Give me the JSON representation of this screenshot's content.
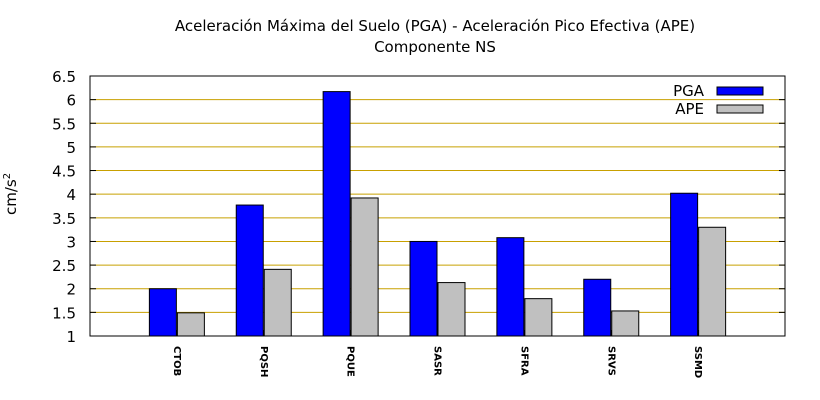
{
  "chart_data": {
    "type": "bar",
    "title": "Aceleración Máxima del Suelo (PGA) -  Aceleración Pico Efectiva (APE)",
    "subtitle": "Componente NS",
    "ylabel_base": "cm/s",
    "ylabel_exp": "2",
    "xlabel": "",
    "ylim": [
      1,
      6.5
    ],
    "yticks": [
      "1",
      "1.5",
      "2",
      "2.5",
      "3",
      "3.5",
      "4",
      "4.5",
      "5",
      "5.5",
      "6",
      "6.5"
    ],
    "grid": true,
    "legend_position": "top-right",
    "categories": [
      "CTOB",
      "PQSH",
      "PQUE",
      "SASR",
      "SFRA",
      "SRVS",
      "SSMD"
    ],
    "series": [
      {
        "name": "PGA",
        "color": "#0000ff",
        "values": [
          2.0,
          3.77,
          6.17,
          3.0,
          3.08,
          2.2,
          4.02
        ]
      },
      {
        "name": "APE",
        "color": "#c0c0c0",
        "values": [
          1.49,
          2.41,
          3.92,
          2.13,
          1.79,
          1.53,
          3.3
        ]
      }
    ],
    "grid_color": "#c8a000"
  }
}
